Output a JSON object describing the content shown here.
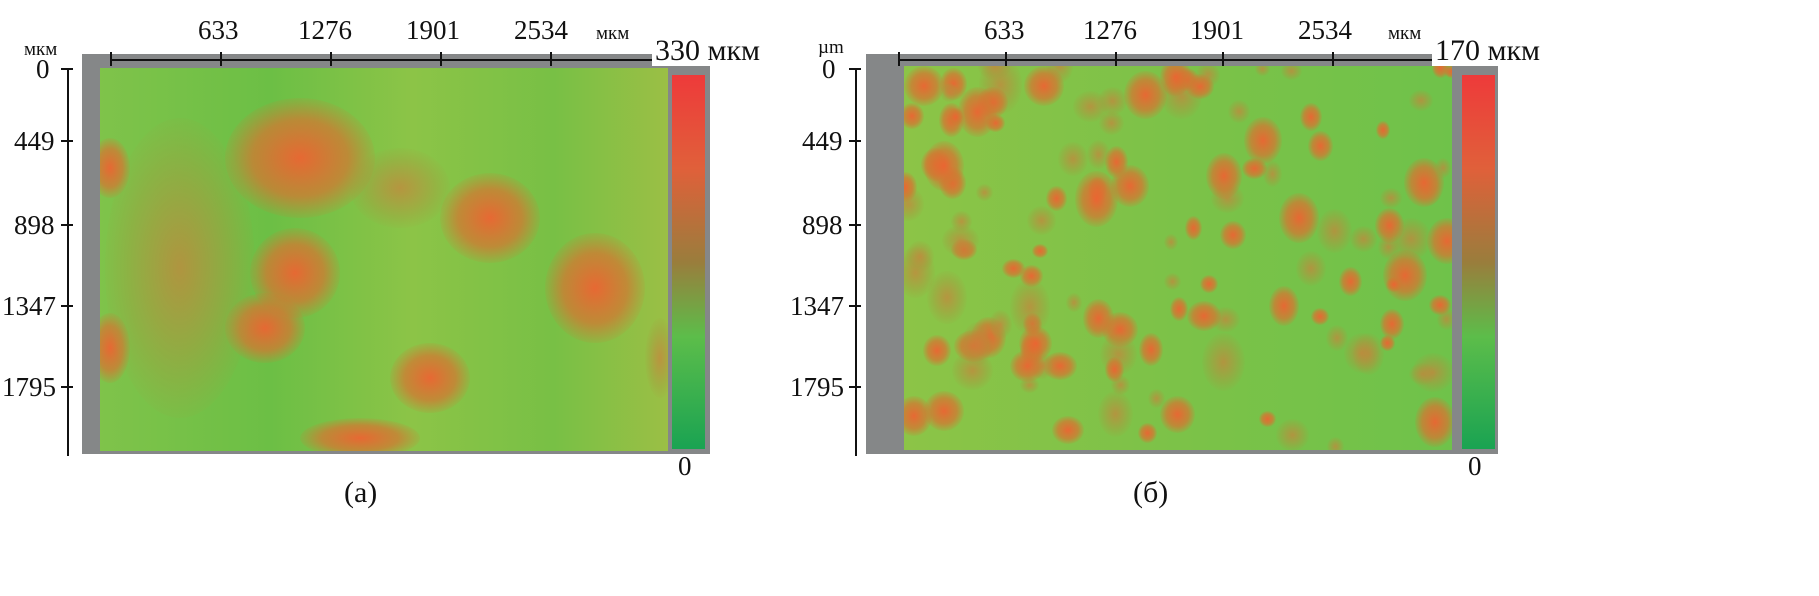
{
  "panels": [
    {
      "id": "a",
      "caption": "(а)",
      "x_unit": "мкм",
      "y_unit": "мкм",
      "x_ticks": [
        "633",
        "1276",
        "1901",
        "2534"
      ],
      "y_ticks": [
        "0",
        "449",
        "898",
        "1347",
        "1795"
      ],
      "colorbar_max": "330 мкм",
      "colorbar_min": "0",
      "colorbar_colors": [
        "#ee3a3a",
        "#9a7d3c",
        "#1aa352"
      ]
    },
    {
      "id": "b",
      "caption": "(б)",
      "x_unit": "мкм",
      "y_unit": "µm",
      "x_ticks": [
        "633",
        "1276",
        "1901",
        "2534"
      ],
      "y_ticks": [
        "0",
        "449",
        "898",
        "1347",
        "1795"
      ],
      "colorbar_max": "170 мкм",
      "colorbar_min": "0",
      "colorbar_colors": [
        "#ee3a3a",
        "#9a7d3c",
        "#1aa352"
      ]
    }
  ]
}
